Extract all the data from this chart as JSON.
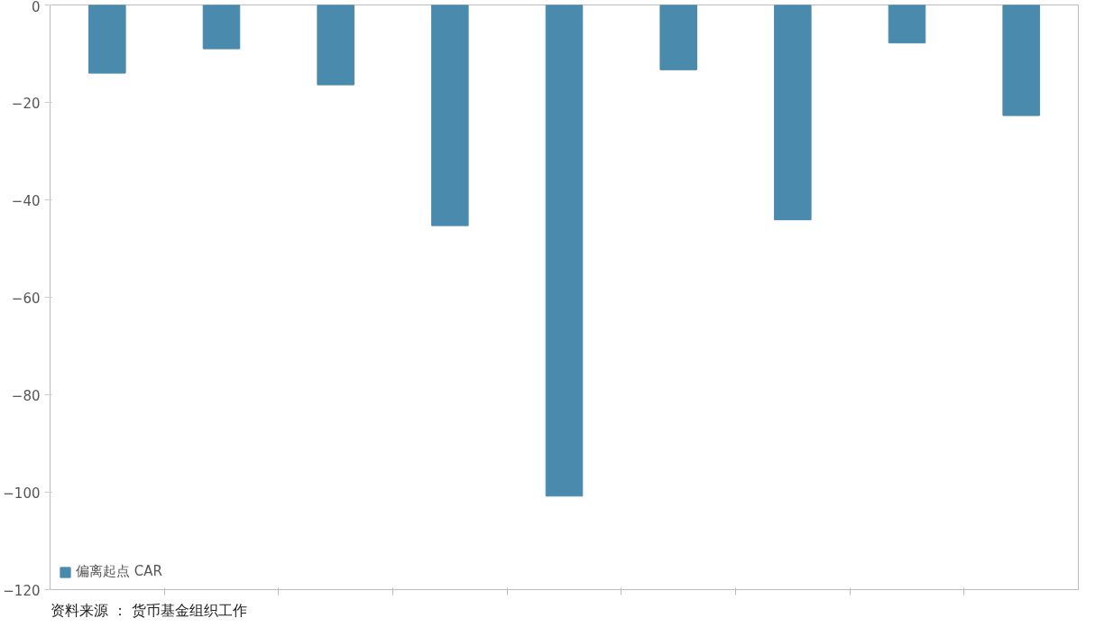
{
  "chart_data": {
    "type": "bar",
    "categories": [
      null,
      null,
      null,
      null,
      null,
      null,
      null,
      null,
      null
    ],
    "series": [
      {
        "name": "偏离起点 CAR",
        "color": "#4a8aad",
        "values": [
          -14,
          -9,
          -16.4,
          -45.3,
          -100.8,
          -13.3,
          -44.1,
          -7.8,
          -22.7
        ]
      }
    ],
    "ylim": [
      -120,
      0
    ],
    "yticks": [
      0,
      -20,
      -40,
      -60,
      -80,
      -100,
      -120
    ],
    "grid": false,
    "legend": "bottom left",
    "tick_labels": "y",
    "annotations": [
      "资料来源 ： 货币基金组织工作"
    ]
  }
}
